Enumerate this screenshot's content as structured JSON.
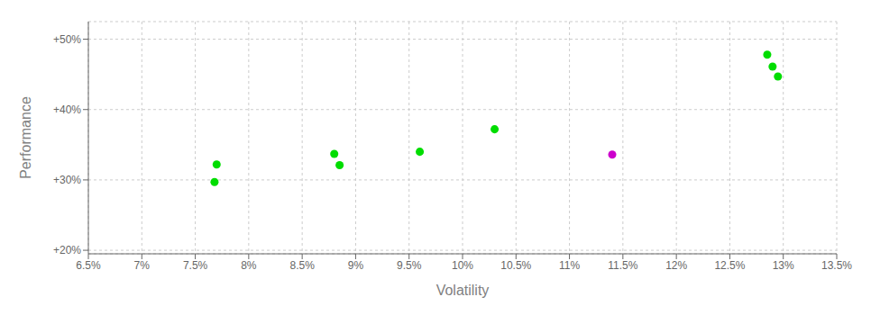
{
  "chart_data": {
    "type": "scatter",
    "xlabel": "Volatility",
    "ylabel": "Performance",
    "xlim": [
      0.065,
      0.135
    ],
    "xticks": [
      {
        "value": 0.065,
        "label": "6.5%"
      },
      {
        "value": 0.07,
        "label": "7%"
      },
      {
        "value": 0.075,
        "label": "7.5%"
      },
      {
        "value": 0.08,
        "label": "8%"
      },
      {
        "value": 0.085,
        "label": "8.5%"
      },
      {
        "value": 0.09,
        "label": "9%"
      },
      {
        "value": 0.095,
        "label": "9.5%"
      },
      {
        "value": 0.1,
        "label": "10%"
      },
      {
        "value": 0.105,
        "label": "10.5%"
      },
      {
        "value": 0.11,
        "label": "11%"
      },
      {
        "value": 0.115,
        "label": "11.5%"
      },
      {
        "value": 0.12,
        "label": "12%"
      },
      {
        "value": 0.125,
        "label": "12.5%"
      },
      {
        "value": 0.13,
        "label": "13%"
      },
      {
        "value": 0.135,
        "label": "13.5%"
      }
    ],
    "ylim": [
      0.195,
      0.525
    ],
    "yticks": [
      {
        "value": 0.2,
        "label": "+20%"
      },
      {
        "value": 0.3,
        "label": "+30%"
      },
      {
        "value": 0.4,
        "label": "+40%"
      },
      {
        "value": 0.5,
        "label": "+50%"
      }
    ],
    "grid": true,
    "series": [
      {
        "color": "#00dd00",
        "x": [
          0.077,
          0.0768,
          0.088,
          0.0885,
          0.096,
          0.103,
          0.1285,
          0.129,
          0.1295
        ],
        "values": [
          0.322,
          0.297,
          0.337,
          0.321,
          0.34,
          0.372,
          0.478,
          0.461,
          0.447
        ]
      },
      {
        "color": "#cc00cc",
        "x": [
          0.114
        ],
        "values": [
          0.336
        ]
      }
    ]
  }
}
